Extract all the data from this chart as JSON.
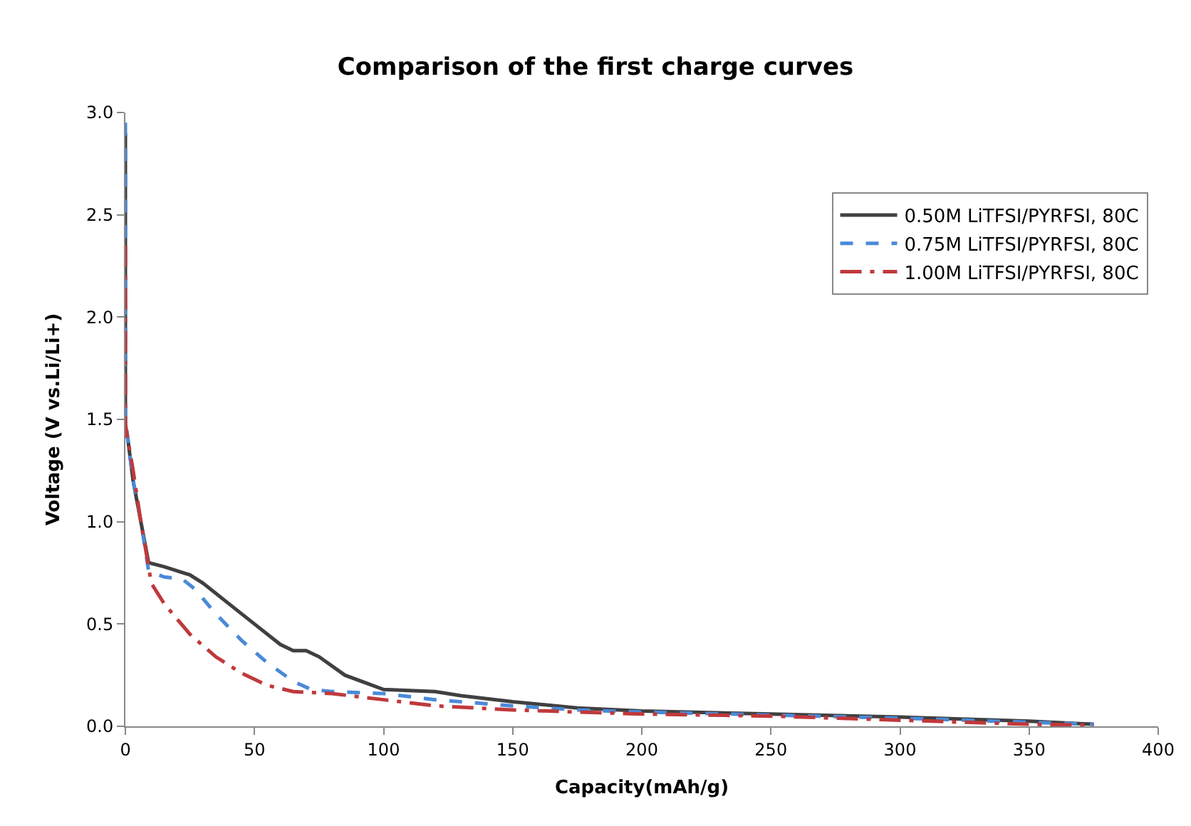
{
  "chart_data": {
    "type": "line",
    "title": "Comparison of the first charge curves",
    "xlabel": "Capacity(mAh/g)",
    "ylabel": "Voltage (V vs.Li/Li+)",
    "xlim": [
      0,
      400
    ],
    "xticks": [
      0,
      50,
      100,
      150,
      200,
      250,
      300,
      350,
      400
    ],
    "ylim": [
      0,
      3
    ],
    "yticks": [
      {
        "value": 0,
        "label": "0.0"
      },
      {
        "value": 0.5,
        "label": "0.5"
      },
      {
        "value": 1,
        "label": "1.0"
      },
      {
        "value": 1.5,
        "label": "1.5"
      },
      {
        "value": 2,
        "label": "2.0"
      },
      {
        "value": 2.5,
        "label": "2.5"
      },
      {
        "value": 3,
        "label": "3.0"
      }
    ],
    "grid": false,
    "legend": "top right",
    "marker": "none",
    "series": [
      {
        "name": "0.50M LiTFSI/PYRFSI, 80C",
        "color": "#404040",
        "line_style": "solid",
        "x": [
          0,
          0,
          1,
          3,
          6,
          9,
          15,
          20,
          25,
          30,
          40,
          50,
          60,
          65,
          70,
          75,
          85,
          100,
          120,
          130,
          150,
          175,
          200,
          250,
          300,
          350,
          375
        ],
        "values": [
          2.9,
          1.45,
          1.4,
          1.2,
          1.0,
          0.8,
          0.78,
          0.76,
          0.74,
          0.7,
          0.6,
          0.5,
          0.4,
          0.37,
          0.37,
          0.34,
          0.25,
          0.18,
          0.17,
          0.15,
          0.12,
          0.09,
          0.075,
          0.06,
          0.045,
          0.025,
          0.01
        ]
      },
      {
        "name": "0.75M LiTFSI/PYRFSI, 80C",
        "color": "#4a8ad8",
        "line_style": "dashed",
        "x": [
          0,
          0,
          1,
          3,
          6,
          9,
          15,
          22,
          27,
          35,
          45,
          55,
          65,
          72,
          80,
          100,
          120,
          150,
          175,
          200,
          250,
          300,
          350,
          375
        ],
        "values": [
          2.95,
          1.5,
          1.4,
          1.2,
          1.0,
          0.76,
          0.73,
          0.72,
          0.67,
          0.55,
          0.42,
          0.31,
          0.22,
          0.18,
          0.17,
          0.16,
          0.13,
          0.1,
          0.08,
          0.07,
          0.055,
          0.04,
          0.02,
          0.01
        ]
      },
      {
        "name": "1.00M LiTFSI/PYRFSI, 80C",
        "color": "#c0393b",
        "line_style": "dashdot",
        "x": [
          0,
          0,
          1,
          3,
          6,
          9,
          10,
          15,
          25,
          35,
          45,
          55,
          65,
          80,
          100,
          120,
          150,
          200,
          250,
          300,
          350,
          375
        ],
        "values": [
          2.35,
          1.48,
          1.4,
          1.25,
          1.0,
          0.78,
          0.7,
          0.6,
          0.45,
          0.34,
          0.26,
          0.2,
          0.17,
          0.16,
          0.13,
          0.1,
          0.08,
          0.06,
          0.05,
          0.03,
          0.01,
          0.005
        ]
      }
    ]
  }
}
